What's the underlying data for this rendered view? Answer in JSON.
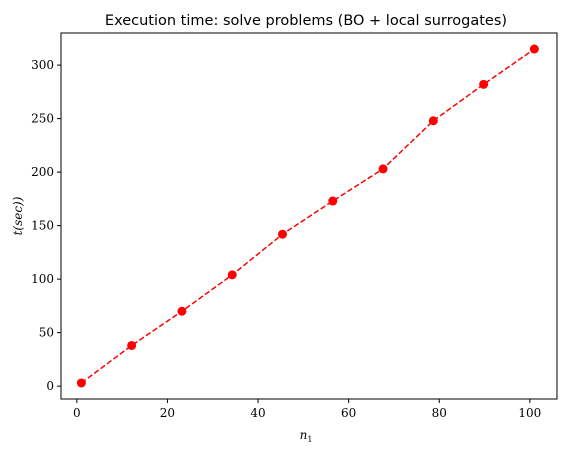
{
  "chart_data": {
    "type": "line",
    "title": "Execution time: solve problems (BO + local surrogates)",
    "xlabel": "n",
    "xlabel_subscript": "1",
    "ylabel": "t(sec))",
    "x_ticks": [
      0,
      20,
      40,
      60,
      80,
      100
    ],
    "y_ticks": [
      0,
      50,
      100,
      150,
      200,
      250,
      300
    ],
    "xlim": [
      -3.5,
      106
    ],
    "ylim": [
      -12,
      330
    ],
    "grid": false,
    "series": [
      {
        "color": "#ff0000",
        "line_style": "dashed",
        "marker": "circle",
        "x": [
          1,
          12.1,
          23.2,
          34.3,
          45.4,
          56.5,
          67.6,
          78.7,
          89.8,
          101
        ],
        "y": [
          3,
          38,
          70,
          104,
          142,
          173,
          203,
          248,
          282,
          315
        ]
      }
    ]
  }
}
